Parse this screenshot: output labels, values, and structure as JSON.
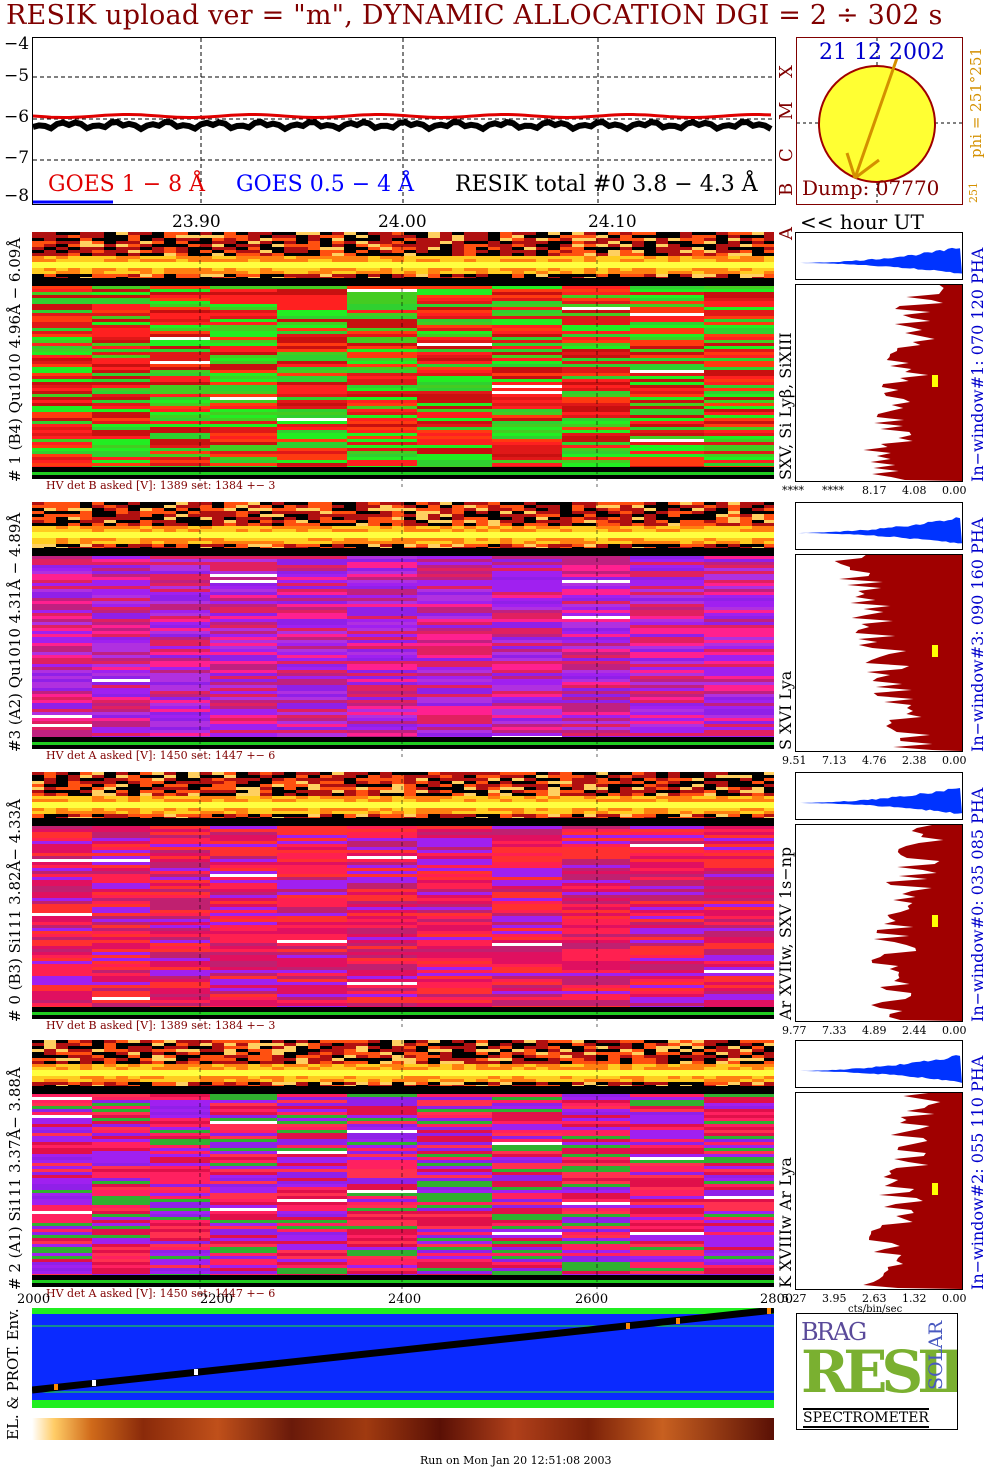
{
  "title": "RESIK upload ver = \"m\", DYNAMIC ALLOCATION  DGI =   2 ÷ 302 s",
  "date": "21 12 2002",
  "dump": "Dump: 07770",
  "phi_label": "phi = 251°251",
  "phi_small": "251",
  "goes_labels": {
    "long": "GOES 1 − 8 Å",
    "short": "GOES 0.5 − 4 Å",
    "resik": "RESIK total #0  3.8 − 4.3 Å"
  },
  "goes_class_letters": [
    "A",
    "B",
    "C",
    "M",
    "X"
  ],
  "lightcurve_ylabels": [
    "−4",
    "−5",
    "−6",
    "−7",
    "−8"
  ],
  "hour_ticks": [
    "23.90",
    "24.00",
    "24.10"
  ],
  "hour_label": "<< hour UT",
  "bottom_ticks": [
    "2000",
    "2200",
    "2400",
    "2600",
    "2800"
  ],
  "env_label": "EL. & PROT. Env.",
  "cts_label": "cts/bin/sec",
  "run_label": "Run on Mon Jan 20 12:51:08 2003",
  "logo": {
    "brand": "RESIK",
    "top": "BRAG",
    "side": "SOLAR",
    "bottom": "SPECTROMETER"
  },
  "colors": {
    "dark_red": "#a00000",
    "blue": "#0000ff",
    "title": "#800000",
    "yellow": "#ffff00",
    "env_blue": "#0a2aff",
    "env_green": "#20ee20"
  },
  "panels": [
    {
      "channel": "# 1 (B4) Qu1010 4.96Å − 6.09Å",
      "hv": "HV det B asked [V]:  1389 set:  1384 +−    3",
      "line": "SXV, Si Lyβ, SiXIII",
      "window": "In−window#1:  070 120 PHA",
      "xticks": [
        "****",
        "****",
        "8.17",
        "4.08",
        "0.00"
      ],
      "scheme": "green"
    },
    {
      "channel": "#3 (A2) Qu1010  4.31Å − 4.89Å",
      "hv": "HV det A asked [V]:  1450 set:  1447 +−    6",
      "line": "S XVI Lya",
      "window": "In−window#3:  090 160 PHA",
      "xticks": [
        "9.51",
        "7.13",
        "4.76",
        "2.38",
        "0.00"
      ],
      "scheme": "purple"
    },
    {
      "channel": "# 0 (B3) Si111  3.82Å− 4.33Å",
      "hv": "HV det B asked [V]:  1389 set:  1384 +−    3",
      "line": "Ar XVIIw,  SXV 1s−np",
      "window": "In−window#0:  035 085 PHA",
      "xticks": [
        "9.77",
        "7.33",
        "4.89",
        "2.44",
        "0.00"
      ],
      "scheme": "pink"
    },
    {
      "channel": "# 2 (A1) Si111  3.37Å− 3.88Å",
      "hv": "HV det A asked [V]:  1450 set:  1447 +−    6",
      "line": "K XVIIIw  Ar Lya",
      "window": "In−window#2:  055 110 PHA",
      "xticks": [
        "5.27",
        "3.95",
        "2.63",
        "1.32",
        "0.00"
      ],
      "scheme": "mixed"
    }
  ]
}
